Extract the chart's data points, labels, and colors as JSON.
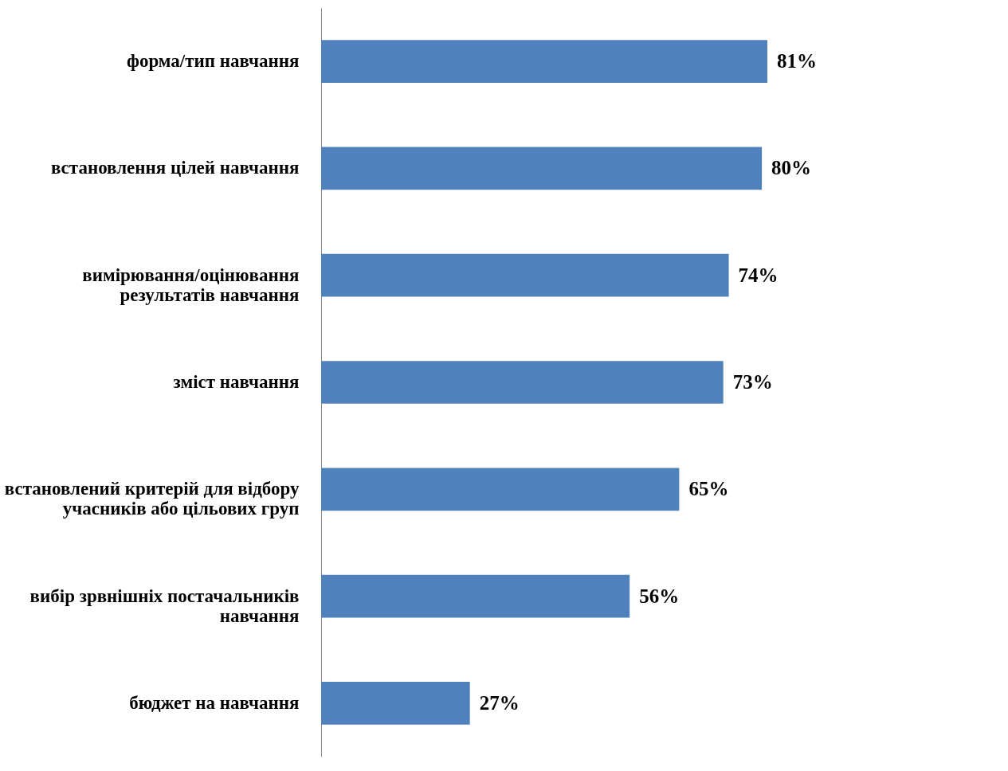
{
  "chart_data": {
    "type": "bar",
    "orientation": "horizontal",
    "categories": [
      "форма/тип навчання",
      "встановлення цілей навчання",
      "вимірювання/оцінювання\nрезультатів  навчання",
      "зміст навчання",
      "встановлений критерій для відбору\nучасників або цільових груп",
      "вибір зрвнішніх постачальників\nнавчання",
      "бюджет на навчання"
    ],
    "values": [
      81,
      80,
      74,
      73,
      65,
      56,
      27
    ],
    "value_labels": [
      "81%",
      "80%",
      "74%",
      "73%",
      "65%",
      "56%",
      "27%"
    ],
    "color": "#4f81bd"
  }
}
